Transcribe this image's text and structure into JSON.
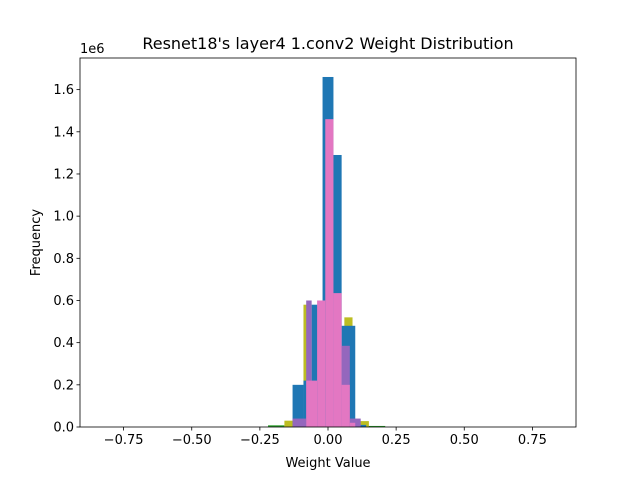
{
  "chart_data": {
    "type": "bar",
    "title": "Resnet18's layer4 1.conv2 Weight Distribution",
    "xlabel": "Weight Value",
    "ylabel": "Frequency",
    "y_offset_text": "1e6",
    "xlim": [
      -0.91,
      0.91
    ],
    "ylim": [
      0,
      1750000
    ],
    "x_ticks": [
      -0.75,
      -0.5,
      -0.25,
      0.0,
      0.25,
      0.5,
      0.75
    ],
    "x_tick_labels": [
      "−0.75",
      "−0.50",
      "−0.25",
      "0.00",
      "0.25",
      "0.50",
      "0.75"
    ],
    "y_ticks": [
      0,
      200000,
      400000,
      600000,
      800000,
      1000000,
      1200000,
      1400000,
      1600000
    ],
    "y_tick_labels": [
      "0.0",
      "0.2",
      "0.4",
      "0.6",
      "0.8",
      "1.0",
      "1.2",
      "1.4",
      "1.6"
    ],
    "grid": false,
    "legend": "none",
    "series": [
      {
        "color": "#2ca02c",
        "bins": [
          {
            "x0": -0.22,
            "x1": -0.16,
            "y": 8000
          },
          {
            "x0": 0.14,
            "x1": 0.21,
            "y": 5000
          }
        ]
      },
      {
        "color": "#bcbd22",
        "bins": [
          {
            "x0": -0.16,
            "x1": -0.12,
            "y": 30000
          },
          {
            "x0": -0.09,
            "x1": -0.06,
            "y": 580000
          },
          {
            "x0": 0.06,
            "x1": 0.09,
            "y": 520000
          },
          {
            "x0": 0.11,
            "x1": 0.15,
            "y": 28000
          }
        ]
      },
      {
        "color": "#1f77b4",
        "bins": [
          {
            "x0": -0.13,
            "x1": -0.09,
            "y": 200000
          },
          {
            "x0": -0.09,
            "x1": -0.06,
            "y": 220000
          },
          {
            "x0": -0.06,
            "x1": -0.02,
            "y": 580000
          },
          {
            "x0": -0.02,
            "x1": 0.02,
            "y": 1660000
          },
          {
            "x0": 0.02,
            "x1": 0.05,
            "y": 1290000
          },
          {
            "x0": 0.05,
            "x1": 0.1,
            "y": 480000
          },
          {
            "x0": 0.1,
            "x1": 0.14,
            "y": 10000
          }
        ]
      },
      {
        "color": "#9467bd",
        "bins": [
          {
            "x0": -0.13,
            "x1": -0.08,
            "y": 40000
          },
          {
            "x0": -0.08,
            "x1": -0.06,
            "y": 600000
          },
          {
            "x0": 0.05,
            "x1": 0.08,
            "y": 385000
          },
          {
            "x0": 0.08,
            "x1": 0.12,
            "y": 40000
          }
        ]
      },
      {
        "color": "#e377c2",
        "bins": [
          {
            "x0": -0.08,
            "x1": -0.04,
            "y": 220000
          },
          {
            "x0": -0.04,
            "x1": -0.01,
            "y": 600000
          },
          {
            "x0": -0.01,
            "x1": 0.02,
            "y": 1460000
          },
          {
            "x0": 0.02,
            "x1": 0.05,
            "y": 635000
          },
          {
            "x0": 0.05,
            "x1": 0.08,
            "y": 200000
          },
          {
            "x0": 0.08,
            "x1": 0.1,
            "y": 20000
          }
        ]
      }
    ]
  }
}
